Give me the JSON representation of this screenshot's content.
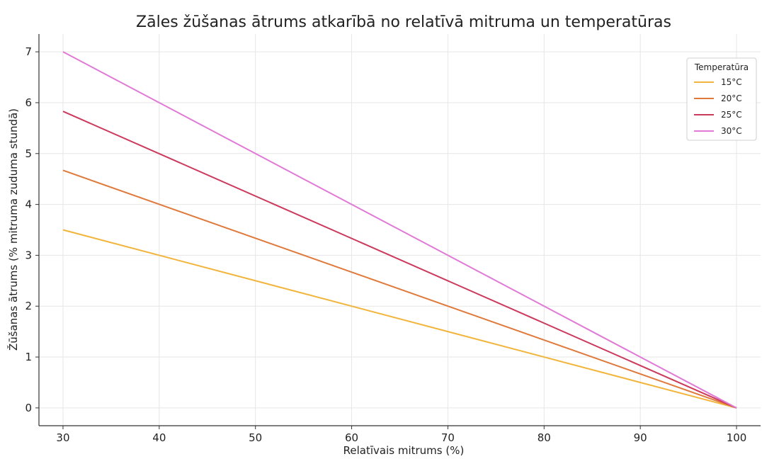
{
  "chart_data": {
    "type": "line",
    "title": "Zāles žūšanas ātrums atkarībā no relatīvā mitruma un temperatūras",
    "xlabel": "Relatīvais mitrums (%)",
    "ylabel": "Žūšanas ātrums (% mitruma zuduma stundā)",
    "xlim": [
      27.5,
      102.5
    ],
    "ylim": [
      -0.35,
      7.35
    ],
    "xticks": [
      30,
      40,
      50,
      60,
      70,
      80,
      90,
      100
    ],
    "yticks": [
      0,
      1,
      2,
      3,
      4,
      5,
      6,
      7
    ],
    "grid": true,
    "legend": {
      "title": "Temperatūra",
      "position": "top-right"
    },
    "x": [
      30,
      100
    ],
    "series": [
      {
        "name": "15°C",
        "color": "#f2b43b",
        "values": [
          3.5,
          0
        ]
      },
      {
        "name": "20°C",
        "color": "#e07a3c",
        "values": [
          4.67,
          0
        ]
      },
      {
        "name": "25°C",
        "color": "#cc3a5c",
        "values": [
          5.83,
          0
        ]
      },
      {
        "name": "30°C",
        "color": "#e07ad6",
        "values": [
          7.0,
          0
        ]
      }
    ]
  }
}
